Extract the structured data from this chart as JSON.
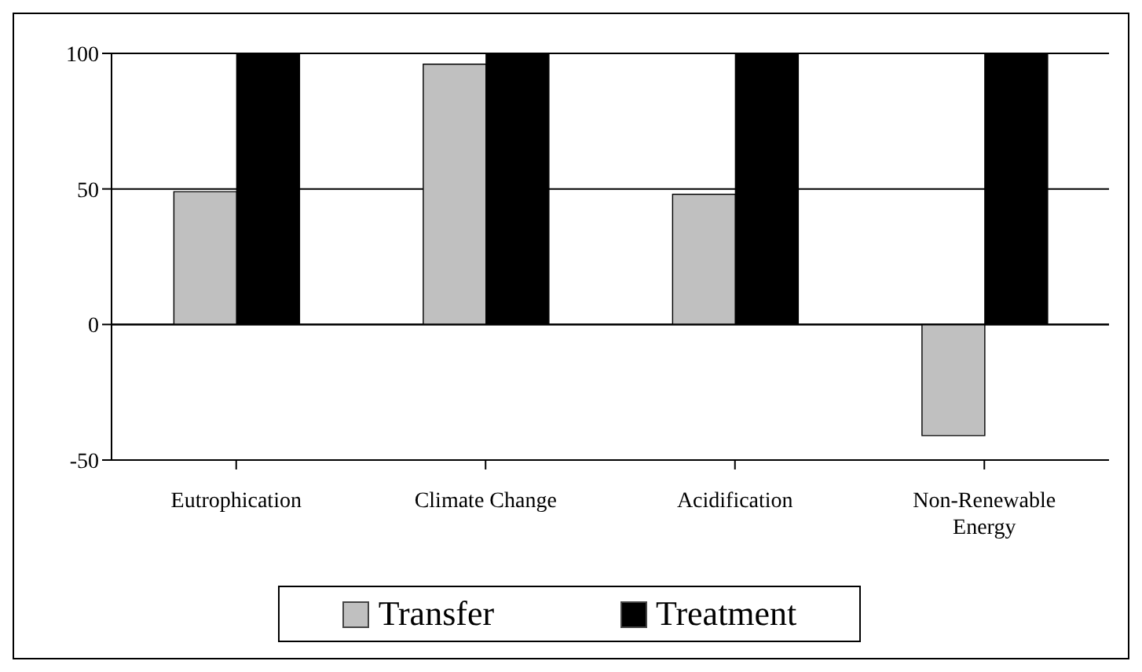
{
  "chart_data": {
    "type": "bar",
    "categories": [
      "Eutrophication",
      "Climate Change",
      "Acidification",
      "Non-Renewable Energy"
    ],
    "series": [
      {
        "name": "Transfer",
        "color": "#c0c0c0",
        "values": [
          49,
          96,
          48,
          -41
        ]
      },
      {
        "name": "Treatment",
        "color": "#000000",
        "values": [
          100,
          100,
          100,
          100
        ]
      }
    ],
    "ylim": [
      -50,
      100
    ],
    "yticks": [
      -50,
      0,
      50,
      100
    ],
    "grid": "y",
    "legend": "bottom"
  }
}
